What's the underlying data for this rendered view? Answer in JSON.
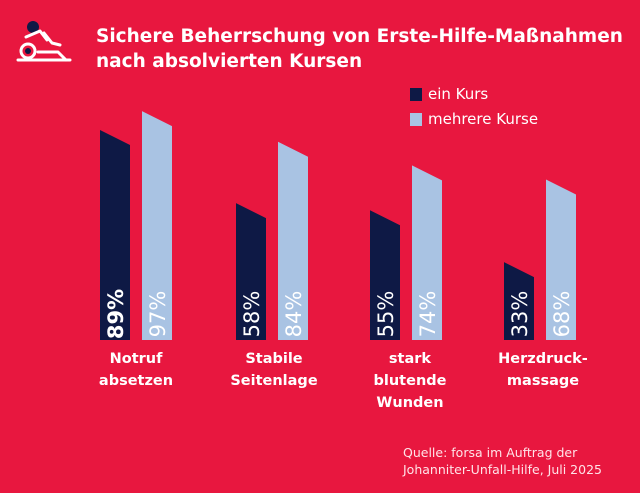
{
  "title_line1": "Sichere Beherrschung von Erste-Hilfe-Maßnahmen",
  "title_line2": "nach absolvierten Kursen",
  "colors": {
    "background": "#e8173f",
    "ein_kurs": "#0e1945",
    "mehrere_kurse": "#a9c3e3",
    "text": "#ffffff"
  },
  "icon": "first-aid-cpr-icon",
  "chart_data": {
    "type": "bar",
    "title": "Sichere Beherrschung von Erste-Hilfe-Maßnahmen nach absolvierten Kursen",
    "categories": [
      "Notruf absetzen",
      "Stabile Seitenlage",
      "stark blutende Wunden",
      "Herzdruck-massage"
    ],
    "category_lines": [
      [
        "Notruf",
        "absetzen"
      ],
      [
        "Stabile",
        "Seitenlage"
      ],
      [
        "stark",
        "blutende",
        "Wunden"
      ],
      [
        "Herzdruck-",
        "massage"
      ]
    ],
    "series": [
      {
        "name": "ein Kurs",
        "values": [
          89,
          58,
          55,
          33
        ],
        "labels": [
          "89%",
          "58%",
          "55%",
          "33%"
        ]
      },
      {
        "name": "mehrere Kurse",
        "values": [
          97,
          84,
          74,
          68
        ],
        "labels": [
          "97%",
          "84%",
          "74%",
          "68%"
        ]
      }
    ],
    "ylim": [
      0,
      100
    ],
    "legend_position": "top-right",
    "xlabel": "",
    "ylabel": ""
  },
  "legend": {
    "ein_kurs": "ein Kurs",
    "mehrere_kurse": "mehrere Kurse"
  },
  "source_line1": "Quelle: forsa im Auftrag der",
  "source_line2": "Johanniter-Unfall-Hilfe, Juli 2025"
}
